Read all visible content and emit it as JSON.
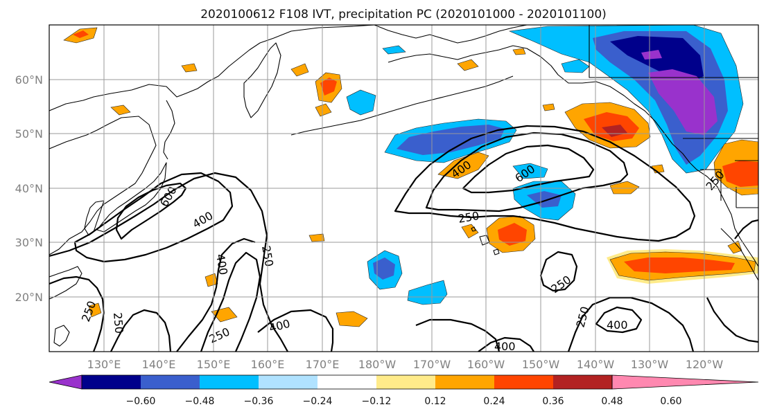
{
  "title": "2020100612 F108 IVT, precipitation PC (2020101000 - 2020101100)",
  "lon_ticks": [
    "130°E",
    "140°E",
    "150°E",
    "160°E",
    "170°E",
    "180°W",
    "170°W",
    "160°W",
    "150°W",
    "140°W",
    "130°W",
    "120°W"
  ],
  "lat_ticks": [
    "60°N",
    "50°N",
    "40°N",
    "30°N",
    "20°N"
  ],
  "colorbar": {
    "ticks": [
      "−0.60",
      "−0.48",
      "−0.36",
      "−0.24",
      "−0.12",
      "0.12",
      "0.24",
      "0.36",
      "0.48",
      "0.60"
    ],
    "colors": [
      "#9932cc",
      "#00008b",
      "#3a5fcd",
      "#00bfff",
      "#b0e2ff",
      "#ffffff",
      "#ffeb8a",
      "#ffa500",
      "#ff4500",
      "#b22222",
      "#ff88b0"
    ]
  },
  "contour_labels": {
    "c1": "600",
    "c2": "400",
    "c3": "250",
    "c4": "400",
    "c5": "250",
    "c6": "250",
    "c7": "250",
    "c8": "400",
    "c9": "250",
    "c10": "400",
    "c11": "600",
    "c12": "250",
    "c13": "250",
    "c14": "250",
    "c15": "400",
    "c16": "400"
  }
}
